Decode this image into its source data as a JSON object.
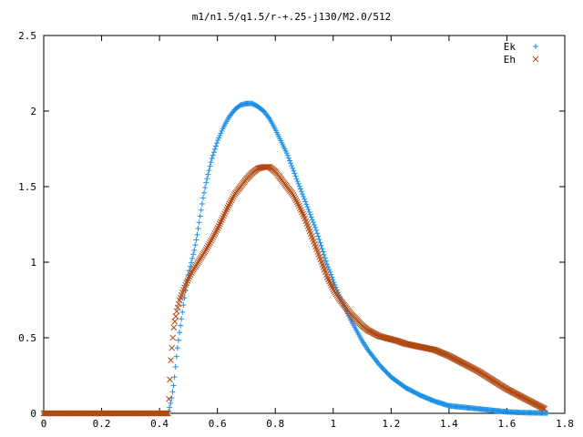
{
  "chart_data": {
    "type": "scatter",
    "title": "m1/n1.5/q1.5/r-+.25-j130/M2.0/512",
    "xlabel": "",
    "ylabel": "",
    "xlim": [
      0,
      1.8
    ],
    "ylim": [
      0,
      2.5
    ],
    "xticks": [
      {
        "value": 0,
        "label": "0"
      },
      {
        "value": 0.2,
        "label": "0.2"
      },
      {
        "value": 0.4,
        "label": "0.4"
      },
      {
        "value": 0.6,
        "label": "0.6"
      },
      {
        "value": 0.8,
        "label": "0.8"
      },
      {
        "value": 1.0,
        "label": "1"
      },
      {
        "value": 1.2,
        "label": "1.2"
      },
      {
        "value": 1.4,
        "label": "1.4"
      },
      {
        "value": 1.6,
        "label": "1.6"
      },
      {
        "value": 1.8,
        "label": "1.8"
      }
    ],
    "yticks": [
      {
        "value": 0,
        "label": "0"
      },
      {
        "value": 0.5,
        "label": "0.5"
      },
      {
        "value": 1.0,
        "label": "1"
      },
      {
        "value": 1.5,
        "label": "1.5"
      },
      {
        "value": 2.0,
        "label": "2"
      },
      {
        "value": 2.5,
        "label": "2.5"
      }
    ],
    "grid": false,
    "legend": "top-right",
    "series": [
      {
        "name": "Ek",
        "marker": "plus",
        "color": "#1a8fe6",
        "x": [
          0.0,
          0.1,
          0.2,
          0.3,
          0.4,
          0.43,
          0.44,
          0.45,
          0.46,
          0.47,
          0.48,
          0.49,
          0.5,
          0.51,
          0.52,
          0.53,
          0.54,
          0.55,
          0.56,
          0.58,
          0.6,
          0.62,
          0.64,
          0.66,
          0.68,
          0.7,
          0.72,
          0.74,
          0.76,
          0.78,
          0.8,
          0.82,
          0.84,
          0.86,
          0.88,
          0.9,
          0.92,
          0.94,
          0.96,
          0.98,
          1.0,
          1.02,
          1.04,
          1.06,
          1.08,
          1.1,
          1.12,
          1.14,
          1.16,
          1.18,
          1.2,
          1.25,
          1.3,
          1.35,
          1.4,
          1.45,
          1.5,
          1.55,
          1.6,
          1.65,
          1.7,
          1.74
        ],
        "y": [
          0.0,
          0.0,
          0.0,
          0.0,
          0.0,
          0.0,
          0.08,
          0.2,
          0.4,
          0.55,
          0.68,
          0.82,
          0.92,
          1.0,
          1.08,
          1.18,
          1.3,
          1.42,
          1.52,
          1.68,
          1.8,
          1.89,
          1.96,
          2.01,
          2.04,
          2.05,
          2.05,
          2.03,
          2.0,
          1.95,
          1.88,
          1.8,
          1.72,
          1.62,
          1.52,
          1.42,
          1.32,
          1.22,
          1.1,
          0.98,
          0.88,
          0.78,
          0.7,
          0.62,
          0.55,
          0.48,
          0.42,
          0.37,
          0.32,
          0.28,
          0.24,
          0.17,
          0.12,
          0.08,
          0.05,
          0.04,
          0.03,
          0.02,
          0.01,
          0.005,
          0.003,
          0.002
        ]
      },
      {
        "name": "Eh",
        "marker": "cross",
        "color": "#b04a14",
        "x": [
          0.0,
          0.1,
          0.2,
          0.3,
          0.4,
          0.43,
          0.44,
          0.45,
          0.46,
          0.47,
          0.48,
          0.49,
          0.5,
          0.51,
          0.52,
          0.53,
          0.54,
          0.56,
          0.58,
          0.6,
          0.62,
          0.64,
          0.66,
          0.68,
          0.7,
          0.72,
          0.74,
          0.76,
          0.78,
          0.8,
          0.82,
          0.84,
          0.86,
          0.88,
          0.9,
          0.92,
          0.94,
          0.96,
          0.98,
          1.0,
          1.02,
          1.04,
          1.06,
          1.08,
          1.1,
          1.12,
          1.14,
          1.16,
          1.18,
          1.2,
          1.22,
          1.25,
          1.3,
          1.35,
          1.4,
          1.45,
          1.5,
          1.55,
          1.6,
          1.65,
          1.7,
          1.73
        ],
        "y": [
          0.0,
          0.0,
          0.0,
          0.0,
          0.0,
          0.0,
          0.38,
          0.58,
          0.68,
          0.75,
          0.8,
          0.85,
          0.89,
          0.93,
          0.96,
          0.99,
          1.02,
          1.08,
          1.15,
          1.22,
          1.3,
          1.38,
          1.45,
          1.5,
          1.55,
          1.59,
          1.62,
          1.63,
          1.63,
          1.6,
          1.55,
          1.5,
          1.45,
          1.38,
          1.3,
          1.2,
          1.1,
          1.0,
          0.9,
          0.82,
          0.76,
          0.71,
          0.66,
          0.62,
          0.58,
          0.55,
          0.53,
          0.51,
          0.5,
          0.49,
          0.48,
          0.46,
          0.44,
          0.42,
          0.38,
          0.33,
          0.28,
          0.22,
          0.16,
          0.11,
          0.06,
          0.03
        ]
      }
    ]
  }
}
